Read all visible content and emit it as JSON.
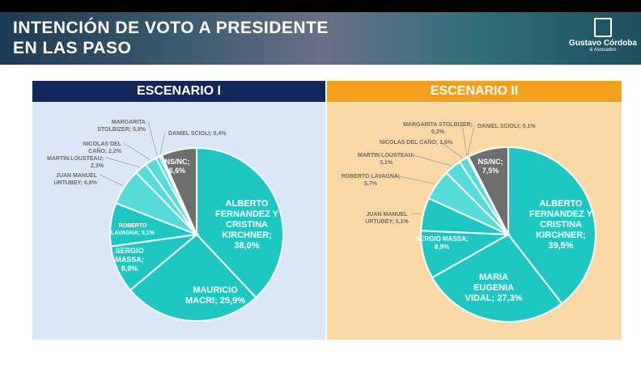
{
  "header": {
    "title_line1": "INTENCIÓN DE VOTO A PRESIDENTE",
    "title_line2": "EN LAS PASO",
    "logo_name": "Gustavo Córdoba",
    "logo_sub": "& Asociados"
  },
  "colors": {
    "main": "#1fc7c3",
    "light": "#55dcd8",
    "nsnc": "#6e6e6e",
    "navy": "#12285a",
    "orange": "#f5a01c"
  },
  "chart_data": [
    {
      "type": "pie",
      "title": "ESCENARIO I",
      "slices": [
        {
          "label": [
            "ALBERTO",
            "FERNANDEZ Y",
            "CRISTINA",
            "KIRCHNER;",
            "38,0%"
          ],
          "value": 38.0
        },
        {
          "label": [
            "MAURICIO",
            "MACRI; 25,9%"
          ],
          "value": 25.9
        },
        {
          "label": [
            "SERGIO",
            "MASSA;",
            "8,9%"
          ],
          "value": 8.9
        },
        {
          "label": [
            "ROBERTO",
            "LAVAGNA; 8,1%"
          ],
          "value": 8.1
        },
        {
          "label": [
            "JUAN MANUEL",
            "URTUBEY; 6,8%"
          ],
          "value": 6.8
        },
        {
          "label": [
            "MARTIN LOUSTEAU;",
            "2,3%"
          ],
          "value": 2.3
        },
        {
          "label": [
            "NICOLAS DEL",
            "CAÑO; 2,2%"
          ],
          "value": 2.2
        },
        {
          "label": [
            "MARGARITA",
            "STOLBIZER; 0,8%"
          ],
          "value": 0.8
        },
        {
          "label": [
            "DANIEL SCIOLI; 0,4%"
          ],
          "value": 0.4
        },
        {
          "label": [
            "NS/NC;",
            "6,6%"
          ],
          "value": 6.6
        }
      ]
    },
    {
      "type": "pie",
      "title": "ESCENARIO II",
      "slices": [
        {
          "label": [
            "ALBERTO",
            "FERNANDEZ Y",
            "CRISTINA",
            "KIRCHNER;",
            "39,5%"
          ],
          "value": 39.5
        },
        {
          "label": [
            "MARIA",
            "EUGENIA",
            "VIDAL; 27,3%"
          ],
          "value": 27.3
        },
        {
          "label": [
            "SERGIO MASSA;",
            "8,9%"
          ],
          "value": 8.9
        },
        {
          "label": [
            "JUAN MANUEL",
            "URTUBEY; 6,1%"
          ],
          "value": 6.1
        },
        {
          "label": [
            "ROBERTO LAVAGNA;",
            "5,7%"
          ],
          "value": 5.7
        },
        {
          "label": [
            "MARTIN LOUSTEAU;",
            "3,1%"
          ],
          "value": 3.1
        },
        {
          "label": [
            "NICOLAS DEL CAÑO; 1,6%"
          ],
          "value": 1.6
        },
        {
          "label": [
            "MARGARITA STOLBIZER;",
            "0,2%"
          ],
          "value": 0.2
        },
        {
          "label": [
            "DANIEL SCIOLI; 0,1%"
          ],
          "value": 0.1
        },
        {
          "label": [
            "NS/NC;",
            "7,5%"
          ],
          "value": 7.5
        }
      ]
    }
  ]
}
